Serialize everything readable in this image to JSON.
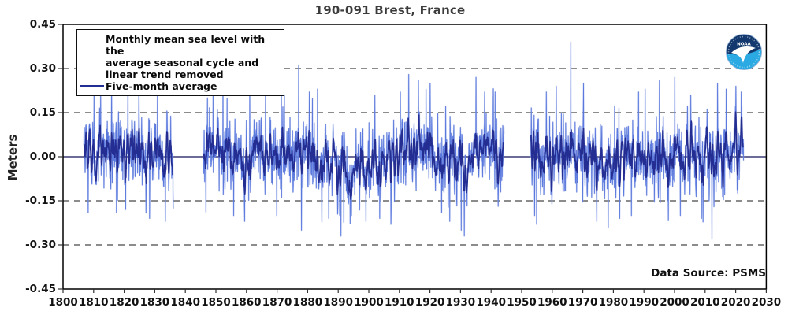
{
  "chart_data": {
    "type": "line",
    "title": "190-091 Brest, France",
    "ylabel": "Meters",
    "source_label": "Data Source: PSMS",
    "noaa_logo_text": "NOAA",
    "xlim": [
      1800,
      2030
    ],
    "ylim": [
      -0.45,
      0.45
    ],
    "x_ticks": [
      1800,
      1810,
      1820,
      1830,
      1840,
      1850,
      1860,
      1870,
      1880,
      1890,
      1900,
      1910,
      1920,
      1930,
      1940,
      1950,
      1960,
      1970,
      1980,
      1990,
      2000,
      2010,
      2020,
      2030
    ],
    "y_ticks": [
      {
        "v": 0.45,
        "label": "0.45"
      },
      {
        "v": 0.3,
        "label": "0.30"
      },
      {
        "v": 0.15,
        "label": "0.15"
      },
      {
        "v": 0.0,
        "label": "0.00"
      },
      {
        "v": -0.15,
        "label": "-0.15"
      },
      {
        "v": -0.3,
        "label": "-0.30"
      },
      {
        "v": -0.45,
        "label": "-0.45"
      }
    ],
    "grid_dashed": [
      0.3,
      0.15,
      -0.15,
      -0.3
    ],
    "zero_line": 0.0,
    "legend": {
      "items": [
        {
          "id": "monthly",
          "label": "Monthly mean sea level with the\naverage seasonal cycle and\nlinear trend removed"
        },
        {
          "id": "five-month-average",
          "label": "Five-month average"
        }
      ]
    },
    "series": [
      {
        "name": "monthly-mean-sea-level",
        "color": "#5b79dd",
        "halo_color": "#98abe9",
        "width": 0.9
      },
      {
        "name": "five-month-average",
        "color": "#232d92",
        "width": 1.7
      }
    ],
    "segments": [
      {
        "start": 1806.8,
        "end": 1836.1
      },
      {
        "start": 1845.9,
        "end": 1944.3
      },
      {
        "start": 1952.9,
        "end": 2022.6
      }
    ],
    "sampling": {
      "points_per_year": 12,
      "seed": 1234567,
      "ar1_phi": 0.45,
      "noise_sd": 0.052,
      "spike_prob": 0.03,
      "spike_min": 0.08,
      "spike_max": 0.2,
      "clamp": 0.25
    },
    "mean_offsets": [
      [
        1807,
        0.02
      ],
      [
        1812,
        0.03
      ],
      [
        1820,
        0.02
      ],
      [
        1827,
        0.0
      ],
      [
        1836,
        0.0
      ],
      [
        1846,
        0.02
      ],
      [
        1852,
        0.02
      ],
      [
        1858,
        -0.01
      ],
      [
        1864,
        0.0
      ],
      [
        1870,
        -0.01
      ],
      [
        1876,
        0.01
      ],
      [
        1882,
        -0.02
      ],
      [
        1888,
        -0.04
      ],
      [
        1895,
        -0.05
      ],
      [
        1901,
        -0.04
      ],
      [
        1906,
        -0.02
      ],
      [
        1911,
        0.03
      ],
      [
        1915,
        0.04
      ],
      [
        1919,
        0.02
      ],
      [
        1924,
        -0.01
      ],
      [
        1929,
        -0.01
      ],
      [
        1934,
        0.0
      ],
      [
        1939,
        0.01
      ],
      [
        1944,
        0.0
      ],
      [
        1952,
        -0.01
      ],
      [
        1958,
        0.0
      ],
      [
        1963,
        0.01
      ],
      [
        1967,
        0.02
      ],
      [
        1972,
        -0.01
      ],
      [
        1977,
        -0.02
      ],
      [
        1981,
        -0.02
      ],
      [
        1986,
        -0.01
      ],
      [
        1991,
        0.0
      ],
      [
        1996,
        0.02
      ],
      [
        2001,
        0.01
      ],
      [
        2006,
        -0.01
      ],
      [
        2011,
        0.0
      ],
      [
        2016,
        0.02
      ],
      [
        2020,
        0.03
      ],
      [
        2023,
        0.02
      ]
    ],
    "extreme_months": [
      [
        1810.1,
        0.23
      ],
      [
        1812.3,
        0.22
      ],
      [
        1817.5,
        -0.19
      ],
      [
        1821.2,
        0.24
      ],
      [
        1824.8,
        0.21
      ],
      [
        1828.3,
        -0.21
      ],
      [
        1830.9,
        0.22
      ],
      [
        1833.5,
        -0.22
      ],
      [
        1847.2,
        0.2
      ],
      [
        1852.3,
        0.24
      ],
      [
        1855.8,
        -0.2
      ],
      [
        1859.4,
        -0.22
      ],
      [
        1861.1,
        0.21
      ],
      [
        1866.2,
        0.22
      ],
      [
        1869.9,
        -0.2
      ],
      [
        1872.4,
        0.21
      ],
      [
        1877.1,
        0.31
      ],
      [
        1880.6,
        0.22
      ],
      [
        1883.2,
        0.23
      ],
      [
        1886.9,
        -0.21
      ],
      [
        1890.9,
        -0.27
      ],
      [
        1894.3,
        -0.2
      ],
      [
        1899.1,
        -0.22
      ],
      [
        1903.6,
        -0.21
      ],
      [
        1907.2,
        -0.23
      ],
      [
        1910.3,
        0.22
      ],
      [
        1913.1,
        0.28
      ],
      [
        1916.2,
        0.26
      ],
      [
        1920.1,
        0.25
      ],
      [
        1923.8,
        -0.19
      ],
      [
        1926.5,
        -0.22
      ],
      [
        1931.2,
        -0.27
      ],
      [
        1935.1,
        0.27
      ],
      [
        1937.9,
        0.22
      ],
      [
        1941.3,
        0.22
      ],
      [
        1954.2,
        -0.2
      ],
      [
        1958.1,
        0.22
      ],
      [
        1961.3,
        0.24
      ],
      [
        1966.1,
        0.39
      ],
      [
        1970.2,
        0.25
      ],
      [
        1974.6,
        -0.22
      ],
      [
        1978.3,
        -0.24
      ],
      [
        1982.1,
        -0.21
      ],
      [
        1985.9,
        -0.2
      ],
      [
        1988.2,
        0.22
      ],
      [
        1990.4,
        0.23
      ],
      [
        1995.1,
        0.26
      ],
      [
        2000.1,
        0.27
      ],
      [
        2001.9,
        -0.2
      ],
      [
        2005.3,
        0.21
      ],
      [
        2008.8,
        -0.21
      ],
      [
        2012.2,
        -0.28
      ],
      [
        2014.1,
        0.25
      ],
      [
        2016.9,
        0.23
      ],
      [
        2020.1,
        0.24
      ],
      [
        2021.8,
        0.22
      ]
    ],
    "colors": {
      "zero_line": "#15155a",
      "grid": "#1a1a1a",
      "border": "#000000",
      "title": "#3c3c3c",
      "tick_label": "#111111",
      "background": "#ffffff",
      "noaa_navy": "#12386e",
      "noaa_lightblue": "#2aa9e2"
    }
  }
}
